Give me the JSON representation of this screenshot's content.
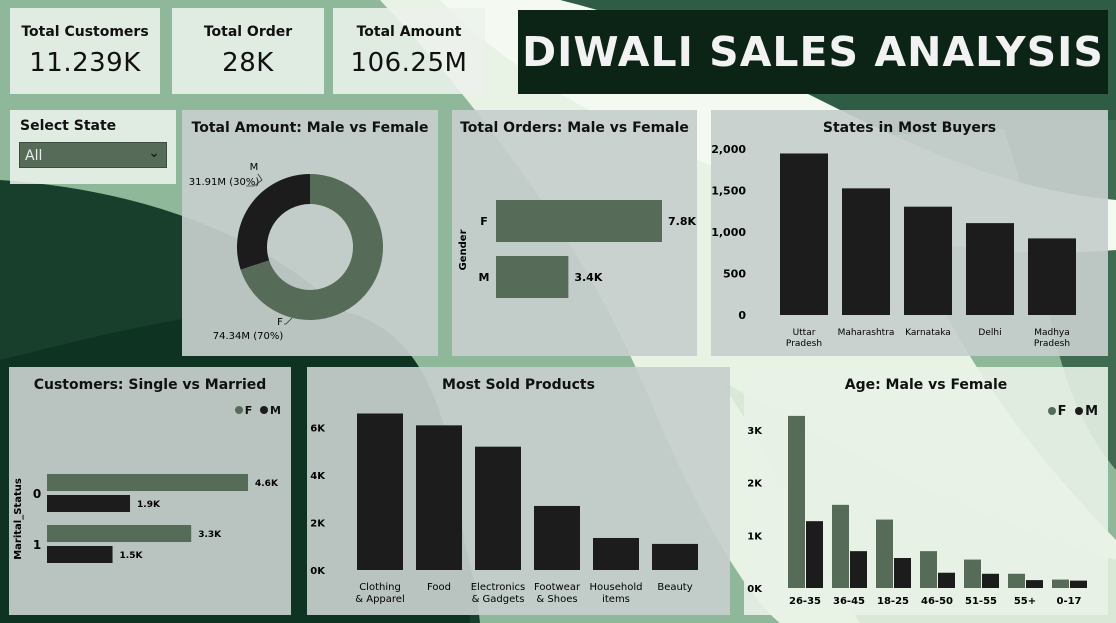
{
  "title": "DIWALI SALES ANALYSIS",
  "colors": {
    "female": "#566b58",
    "male": "#1c1c1c",
    "dark": "#0b2416"
  },
  "kpis": [
    {
      "label": "Total Customers",
      "value": "11.239K"
    },
    {
      "label": "Total Order",
      "value": "28K"
    },
    {
      "label": "Total Amount",
      "value": "106.25M"
    }
  ],
  "slicer": {
    "label": "Select State",
    "value": "All",
    "icon": "chevron-down-icon"
  },
  "chart_data": [
    {
      "id": "amount_gender",
      "type": "pie",
      "variant": "donut",
      "title": "Total Amount: Male vs Female",
      "slices": [
        {
          "name": "M",
          "value": 31.91,
          "label": "31.91M (30%)"
        },
        {
          "name": "F",
          "value": 74.34,
          "label": "74.34M (70%)"
        }
      ]
    },
    {
      "id": "orders_gender",
      "type": "bar",
      "orientation": "horizontal",
      "title": "Total Orders: Male vs Female",
      "ylabel": "Gender",
      "categories": [
        "F",
        "M"
      ],
      "values": [
        7.8,
        3.4
      ],
      "value_labels": [
        "7.8K",
        "3.4K"
      ]
    },
    {
      "id": "states",
      "type": "bar",
      "title": "States in Most Buyers",
      "categories": [
        "Uttar Pradesh",
        "Maharashtra",
        "Karnataka",
        "Delhi",
        "Madhya Pradesh"
      ],
      "values": [
        1946,
        1526,
        1305,
        1107,
        923
      ],
      "ylim": [
        0,
        2000
      ],
      "yticks": [
        "0",
        "500",
        "1,000",
        "1,500",
        "2,000"
      ]
    },
    {
      "id": "marital",
      "type": "bar",
      "orientation": "horizontal",
      "title": "Customers: Single vs Married",
      "ylabel": "Marital_Status",
      "legend": [
        "F",
        "M"
      ],
      "categories": [
        "0",
        "1"
      ],
      "series": [
        {
          "name": "F",
          "values": [
            4.6,
            3.3
          ],
          "value_labels": [
            "4.6K",
            "3.3K"
          ]
        },
        {
          "name": "M",
          "values": [
            1.9,
            1.5
          ],
          "value_labels": [
            "1.9K",
            "1.5K"
          ]
        }
      ]
    },
    {
      "id": "products",
      "type": "bar",
      "title": "Most Sold Products",
      "categories": [
        "Clothing & Apparel",
        "Food",
        "Electronics & Gadgets",
        "Footwear & Shoes",
        "Household items",
        "Beauty"
      ],
      "values": [
        6.6,
        6.1,
        5.2,
        2.7,
        1.35,
        1.1
      ],
      "ylim": [
        0,
        7
      ],
      "yticks": [
        "0K",
        "2K",
        "4K",
        "6K"
      ]
    },
    {
      "id": "age",
      "type": "bar",
      "title": "Age: Male vs Female",
      "legend": [
        "F",
        "M"
      ],
      "categories": [
        "26-35",
        "36-45",
        "18-25",
        "46-50",
        "51-55",
        "55+",
        "0-17"
      ],
      "series": [
        {
          "name": "F",
          "values": [
            3.27,
            1.58,
            1.3,
            0.7,
            0.54,
            0.27,
            0.16
          ]
        },
        {
          "name": "M",
          "values": [
            1.27,
            0.7,
            0.57,
            0.29,
            0.27,
            0.15,
            0.14
          ]
        }
      ],
      "ylim": [
        0,
        3.8
      ],
      "yticks": [
        "0K",
        "1K",
        "2K",
        "3K"
      ]
    }
  ]
}
